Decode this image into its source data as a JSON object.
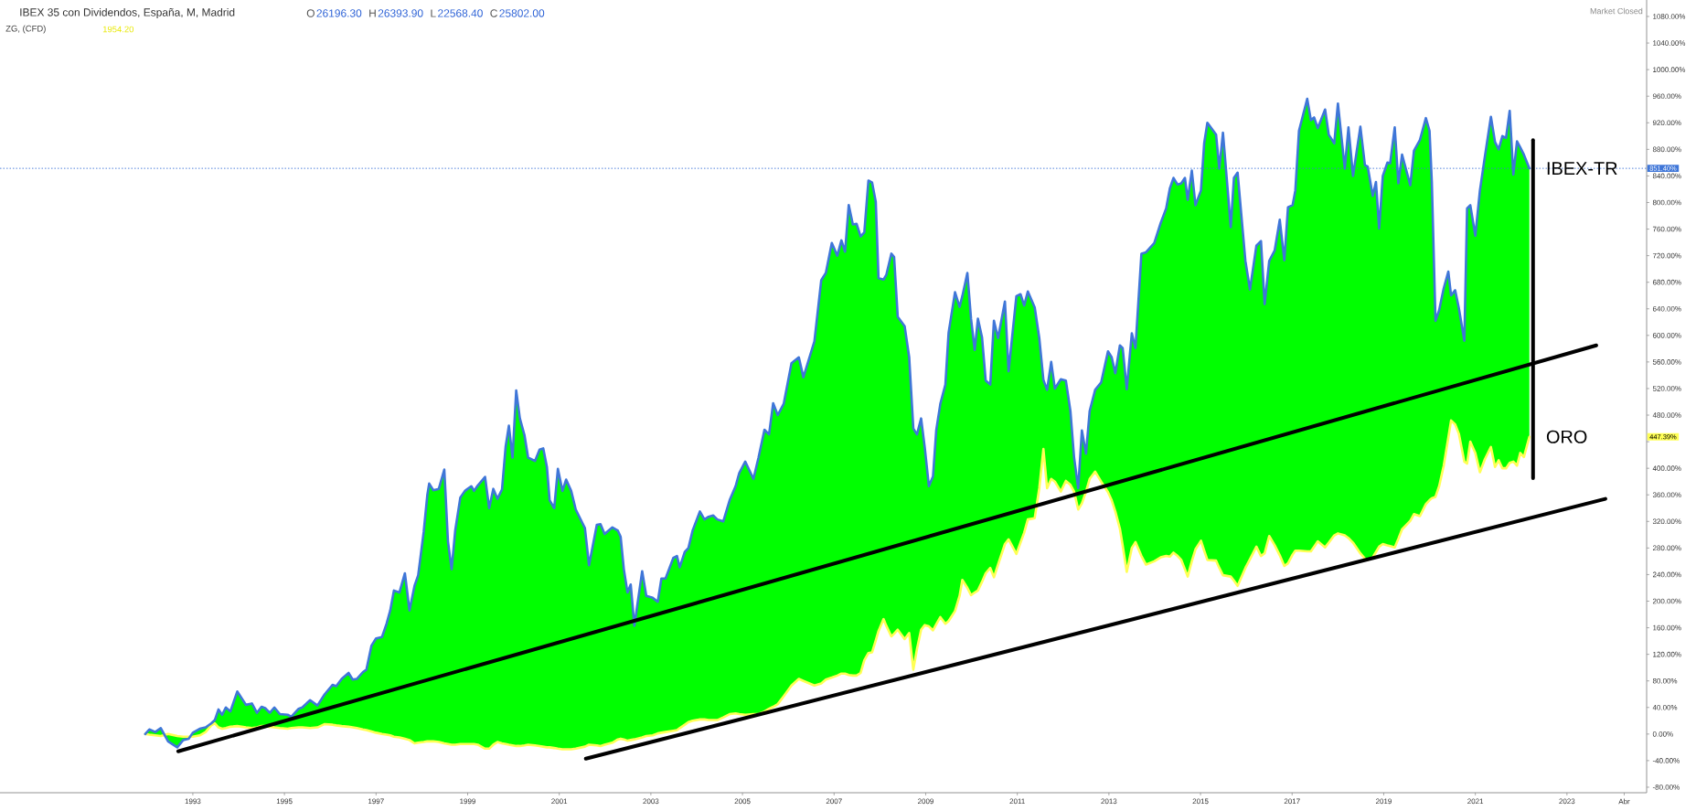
{
  "chart_data": {
    "type": "line",
    "title": "IBEX 35 con Dividendos, España, M, Madrid",
    "subtitle": "ZG, (CFD)",
    "annotations": [
      "O",
      "26196.30",
      "H",
      "26393.90",
      "L",
      "22568.40",
      "C",
      "25802.00",
      "1954.20",
      "Market Closed",
      "447.39%"
    ],
    "x": [
      1991.96,
      1992.05,
      1992.18,
      1992.3,
      1992.46,
      1992.66,
      1992.79,
      1992.91,
      1993.0,
      1993.15,
      1993.28,
      1993.4,
      1993.48,
      1993.56,
      1993.64,
      1993.72,
      1993.82,
      1993.97,
      1994.16,
      1994.29,
      1994.4,
      1994.5,
      1994.58,
      1994.68,
      1994.78,
      1994.9,
      1995.07,
      1995.15,
      1995.31,
      1995.39,
      1995.56,
      1995.72,
      1995.88,
      1996.05,
      1996.13,
      1996.25,
      1996.4,
      1996.49,
      1996.58,
      1996.71,
      1996.79,
      1996.9,
      1997.0,
      1997.13,
      1997.23,
      1997.31,
      1997.39,
      1997.51,
      1997.63,
      1997.73,
      1997.84,
      1997.92,
      1998.04,
      1998.12,
      1998.16,
      1998.25,
      1998.37,
      1998.49,
      1998.57,
      1998.65,
      1998.73,
      1998.84,
      1998.94,
      1999.08,
      1999.14,
      1999.22,
      1999.38,
      1999.47,
      1999.56,
      1999.65,
      1999.75,
      1999.83,
      1999.9,
      1999.98,
      2000.06,
      2000.14,
      2000.24,
      2000.32,
      2000.47,
      2000.57,
      2000.65,
      2000.73,
      2000.79,
      2000.89,
      2000.97,
      2001.07,
      2001.15,
      2001.26,
      2001.36,
      2001.56,
      2001.65,
      2001.82,
      2001.9,
      2001.99,
      2002.16,
      2002.28,
      2002.34,
      2002.41,
      2002.49,
      2002.56,
      2002.64,
      2002.81,
      2002.9,
      2003.04,
      2003.15,
      2003.23,
      2003.32,
      2003.49,
      2003.57,
      2003.63,
      2003.74,
      2003.82,
      2003.91,
      2004.07,
      2004.17,
      2004.26,
      2004.36,
      2004.45,
      2004.58,
      2004.72,
      2004.85,
      2004.93,
      2005.06,
      2005.24,
      2005.35,
      2005.48,
      2005.58,
      2005.67,
      2005.77,
      2005.9,
      2006.07,
      2006.23,
      2006.33,
      2006.57,
      2006.72,
      2006.82,
      2006.95,
      2007.07,
      2007.16,
      2007.24,
      2007.32,
      2007.41,
      2007.49,
      2007.58,
      2007.66,
      2007.75,
      2007.83,
      2007.91,
      2007.97,
      2008.08,
      2008.14,
      2008.25,
      2008.31,
      2008.39,
      2008.54,
      2008.64,
      2008.73,
      2008.81,
      2008.9,
      2008.98,
      2009.07,
      2009.16,
      2009.23,
      2009.32,
      2009.43,
      2009.5,
      2009.64,
      2009.74,
      2009.8,
      2009.91,
      2009.99,
      2010.07,
      2010.14,
      2010.23,
      2010.31,
      2010.41,
      2010.49,
      2010.58,
      2010.73,
      2010.81,
      2010.98,
      2011.07,
      2011.15,
      2011.23,
      2011.38,
      2011.48,
      2011.57,
      2011.65,
      2011.74,
      2011.82,
      2011.95,
      2012.06,
      2012.16,
      2012.24,
      2012.33,
      2012.41,
      2012.5,
      2012.58,
      2012.7,
      2012.83,
      2012.98,
      2013.06,
      2013.14,
      2013.24,
      2013.3,
      2013.39,
      2013.5,
      2013.58,
      2013.71,
      2013.81,
      2013.99,
      2014.13,
      2014.25,
      2014.33,
      2014.41,
      2014.5,
      2014.58,
      2014.66,
      2014.72,
      2014.81,
      2014.89,
      2015.01,
      2015.08,
      2015.15,
      2015.34,
      2015.41,
      2015.49,
      2015.66,
      2015.73,
      2015.81,
      2015.98,
      2016.08,
      2016.22,
      2016.32,
      2016.4,
      2016.5,
      2016.62,
      2016.73,
      2016.83,
      2016.91,
      2017.01,
      2017.07,
      2017.15,
      2017.33,
      2017.41,
      2017.48,
      2017.56,
      2017.72,
      2017.8,
      2017.92,
      2018.0,
      2018.15,
      2018.23,
      2018.33,
      2018.49,
      2018.59,
      2018.65,
      2018.76,
      2018.83,
      2018.9,
      2018.98,
      2019.08,
      2019.14,
      2019.24,
      2019.32,
      2019.4,
      2019.58,
      2019.66,
      2019.79,
      2019.92,
      2020.0,
      2020.05,
      2020.13,
      2020.21,
      2020.31,
      2020.41,
      2020.47,
      2020.56,
      2020.64,
      2020.76,
      2020.82,
      2020.89,
      2021.0,
      2021.1,
      2021.21,
      2021.34,
      2021.43,
      2021.51,
      2021.59,
      2021.67,
      2021.75,
      2021.83,
      2021.91,
      2021.98,
      2022.06,
      2022.18
    ],
    "series": [
      {
        "name": "ORO",
        "color": "#ffff55",
        "values": [
          0,
          -1,
          -2,
          -3,
          0,
          -3,
          -4,
          -4,
          -4,
          -2,
          3,
          13,
          16,
          10,
          8,
          9,
          11,
          12,
          10,
          9,
          10,
          12,
          12,
          11,
          10,
          9,
          8,
          9,
          10,
          10,
          9,
          10,
          15,
          14,
          13,
          12,
          11,
          10,
          9,
          7,
          6,
          4,
          2,
          0,
          -1,
          -2,
          -4,
          -5,
          -7,
          -9,
          -14,
          -13,
          -12,
          -11,
          -11,
          -11,
          -12,
          -14,
          -15,
          -16,
          -16,
          -15,
          -15,
          -15,
          -15,
          -16,
          -22,
          -22,
          -16,
          -12,
          -14,
          -15,
          -16,
          -17,
          -18,
          -18,
          -17,
          -16,
          -17,
          -18,
          -19,
          -20,
          -20,
          -21,
          -22,
          -23,
          -23,
          -23,
          -22,
          -19,
          -16,
          -17,
          -18,
          -16,
          -13,
          -8,
          -7,
          -8,
          -10,
          -9,
          -8,
          -5,
          -3,
          -2,
          1,
          2,
          3,
          5,
          6,
          9,
          14,
          18,
          20,
          22,
          22,
          21,
          21,
          21,
          25,
          30,
          31,
          30,
          29,
          30,
          30,
          34,
          38,
          41,
          45,
          57,
          73,
          83,
          80,
          73,
          76,
          82,
          85,
          88,
          91,
          91,
          89,
          88,
          88,
          92,
          111,
          122,
          123,
          141,
          155,
          173,
          163,
          147,
          151,
          157,
          143,
          152,
          97,
          128,
          157,
          164,
          162,
          156,
          165,
          176,
          166,
          170,
          185,
          208,
          232,
          220,
          209,
          213,
          216,
          229,
          242,
          250,
          236,
          255,
          286,
          293,
          271,
          288,
          303,
          323,
          325,
          370,
          429,
          370,
          384,
          380,
          365,
          381,
          375,
          365,
          338,
          347,
          365,
          384,
          395,
          380,
          364,
          352,
          335,
          309,
          284,
          244,
          280,
          289,
          268,
          255,
          260,
          266,
          268,
          267,
          273,
          268,
          262,
          248,
          237,
          260,
          278,
          291,
          276,
          262,
          261,
          250,
          239,
          237,
          231,
          223,
          250,
          263,
          282,
          268,
          272,
          298,
          284,
          269,
          253,
          257,
          270,
          276,
          276,
          275,
          275,
          282,
          290,
          281,
          288,
          299,
          302,
          299,
          295,
          288,
          272,
          264,
          262,
          266,
          274,
          282,
          286,
          284,
          283,
          281,
          294,
          308,
          321,
          331,
          328,
          346,
          352,
          355,
          357,
          373,
          404,
          446,
          472,
          466,
          452,
          410,
          407,
          440,
          423,
          394,
          414,
          432,
          402,
          412,
          400,
          400,
          408,
          410,
          404,
          423,
          417,
          447.39
        ]
      },
      {
        "name": "IBEX-TR",
        "color": "#3f76d8",
        "values": [
          0,
          7,
          3,
          9,
          -11,
          -20,
          -9,
          -7,
          2,
          8,
          10,
          16,
          21,
          37,
          29,
          40,
          34,
          64,
          44,
          46,
          32,
          41,
          39,
          32,
          40,
          30,
          29,
          26,
          38,
          40,
          51,
          43,
          60,
          74,
          72,
          83,
          92,
          82,
          83,
          93,
          97,
          133,
          144,
          146,
          166,
          186,
          216,
          213,
          242,
          186,
          223,
          239,
          304,
          360,
          377,
          367,
          369,
          398,
          290,
          248,
          307,
          356,
          366,
          373,
          366,
          374,
          387,
          340,
          369,
          354,
          368,
          433,
          464,
          416,
          517,
          475,
          450,
          416,
          411,
          428,
          430,
          402,
          352,
          340,
          399,
          366,
          383,
          366,
          338,
          310,
          254,
          315,
          316,
          301,
          311,
          306,
          297,
          248,
          213,
          225,
          163,
          245,
          208,
          205,
          199,
          234,
          234,
          265,
          268,
          251,
          274,
          280,
          306,
          335,
          323,
          327,
          329,
          323,
          320,
          352,
          373,
          393,
          410,
          384,
          416,
          458,
          451,
          498,
          480,
          497,
          558,
          567,
          537,
          591,
          683,
          694,
          739,
          720,
          743,
          726,
          796,
          767,
          768,
          749,
          755,
          833,
          830,
          801,
          686,
          684,
          691,
          723,
          718,
          628,
          614,
          567,
          460,
          451,
          475,
          431,
          373,
          388,
          457,
          497,
          526,
          604,
          665,
          643,
          659,
          694,
          625,
          578,
          625,
          597,
          532,
          526,
          622,
          596,
          651,
          546,
          659,
          662,
          645,
          666,
          642,
          596,
          533,
          518,
          560,
          520,
          534,
          532,
          486,
          416,
          370,
          457,
          422,
          486,
          518,
          529,
          576,
          567,
          543,
          585,
          581,
          519,
          603,
          581,
          723,
          725,
          739,
          769,
          791,
          821,
          837,
          827,
          829,
          837,
          804,
          848,
          796,
          818,
          889,
          920,
          902,
          851,
          905,
          763,
          837,
          845,
          712,
          669,
          735,
          742,
          647,
          712,
          728,
          774,
          713,
          793,
          796,
          818,
          908,
          956,
          924,
          928,
          912,
          940,
          902,
          889,
          949,
          851,
          913,
          840,
          914,
          856,
          854,
          810,
          831,
          761,
          840,
          860,
          859,
          913,
          829,
          872,
          826,
          878,
          894,
          927,
          908,
          831,
          622,
          638,
          671,
          696,
          660,
          668,
          641,
          592,
          791,
          796,
          750,
          818,
          870,
          929,
          891,
          880,
          900,
          897,
          938,
          842,
          892,
          883,
          872,
          851.4
        ],
        "lower": [
          0,
          -1,
          -2,
          -3,
          0,
          -3,
          -4,
          -4,
          -4,
          -2,
          3,
          13,
          16,
          10,
          8,
          9,
          11,
          12,
          10,
          9,
          10,
          12,
          12,
          11,
          10,
          9,
          8,
          9,
          10,
          10,
          9,
          10,
          15,
          14,
          13,
          12,
          11,
          10,
          9,
          7,
          6,
          4,
          2,
          0,
          -1,
          -2,
          -4,
          -5,
          -7,
          -9,
          -14,
          -13,
          -12,
          -11,
          -11,
          -11,
          -12,
          -14,
          -15,
          -16,
          -16,
          -15,
          -15,
          -15,
          -15,
          -16,
          -22,
          -22,
          -16,
          -12,
          -14,
          -15,
          -16,
          -17,
          -18,
          -18,
          -17,
          -16,
          -17,
          -18,
          -19,
          -20,
          -20,
          -21,
          -22,
          -23,
          -23,
          -23,
          -22,
          -19,
          -16,
          -17,
          -18,
          -16,
          -13,
          -8,
          -7,
          -8,
          -10,
          -9,
          -8,
          -5,
          -3,
          -2,
          1,
          2,
          3,
          5,
          6,
          9,
          14,
          18,
          20,
          22,
          22,
          21,
          21,
          21,
          25,
          30,
          31,
          30,
          29,
          30,
          30,
          34,
          38,
          41,
          45,
          57,
          73,
          83,
          80,
          73,
          76,
          82,
          85,
          88,
          91,
          91,
          89,
          88,
          88,
          92,
          111,
          122,
          123,
          141,
          155,
          173,
          163,
          147,
          151,
          157,
          143,
          152,
          97,
          128,
          157,
          164,
          162,
          156,
          165,
          176,
          166,
          170,
          185,
          208,
          232,
          220,
          209,
          213,
          216,
          229,
          242,
          250,
          236,
          255,
          286,
          293,
          271,
          288,
          303,
          323,
          325,
          370,
          429,
          370,
          384,
          380,
          365,
          381,
          375,
          365,
          338,
          347,
          365,
          384,
          395,
          380,
          364,
          352,
          335,
          309,
          284,
          244,
          280,
          289,
          268,
          255,
          260,
          266,
          268,
          267,
          273,
          268,
          262,
          248,
          237,
          260,
          278,
          291,
          276,
          262,
          261,
          250,
          239,
          237,
          231,
          223,
          250,
          263,
          282,
          268,
          272,
          298,
          284,
          269,
          253,
          257,
          270,
          276,
          276,
          275,
          275,
          282,
          290,
          281,
          288,
          299,
          302,
          299,
          295,
          288,
          272,
          264,
          262,
          266,
          274,
          282,
          286,
          284,
          283,
          281,
          294,
          308,
          321,
          331,
          328,
          346,
          352,
          355,
          357,
          373,
          404,
          446,
          472,
          466,
          452,
          410,
          407,
          440,
          423,
          394,
          414,
          432,
          402,
          412,
          400,
          400,
          408,
          410,
          404,
          423,
          417,
          447.39
        ],
        "upper": [
          0,
          7,
          3,
          9,
          -11,
          -20,
          -9,
          -7,
          2,
          8,
          10,
          16,
          21,
          37,
          29,
          40,
          34,
          64,
          44,
          46,
          32,
          41,
          39,
          32,
          40,
          30,
          29,
          26,
          38,
          40,
          51,
          43,
          60,
          74,
          72,
          83,
          92,
          82,
          83,
          93,
          97,
          133,
          144,
          146,
          166,
          186,
          216,
          213,
          242,
          186,
          223,
          239,
          304,
          360,
          377,
          367,
          369,
          398,
          290,
          248,
          307,
          356,
          366,
          373,
          366,
          374,
          387,
          340,
          369,
          354,
          368,
          433,
          464,
          416,
          517,
          475,
          450,
          416,
          411,
          428,
          430,
          402,
          352,
          340,
          399,
          366,
          383,
          366,
          338,
          310,
          254,
          315,
          316,
          301,
          311,
          306,
          297,
          248,
          213,
          225,
          163,
          245,
          208,
          205,
          199,
          234,
          234,
          265,
          268,
          251,
          274,
          280,
          306,
          335,
          323,
          327,
          329,
          323,
          320,
          352,
          373,
          393,
          410,
          384,
          416,
          458,
          451,
          498,
          480,
          497,
          558,
          567,
          537,
          591,
          683,
          694,
          739,
          720,
          743,
          726,
          796,
          767,
          768,
          749,
          755,
          833,
          830,
          801,
          686,
          684,
          691,
          723,
          718,
          628,
          614,
          567,
          460,
          451,
          475,
          431,
          373,
          388,
          457,
          497,
          526,
          604,
          665,
          643,
          659,
          694,
          625,
          578,
          625,
          597,
          532,
          526,
          622,
          596,
          651,
          546,
          659,
          662,
          645,
          666,
          642,
          596,
          533,
          518,
          560,
          520,
          534,
          532,
          486,
          416,
          370,
          457,
          422,
          486,
          518,
          529,
          576,
          567,
          543,
          585,
          581,
          519,
          603,
          581,
          723,
          725,
          739,
          769,
          791,
          821,
          837,
          827,
          829,
          837,
          804,
          848,
          796,
          818,
          889,
          920,
          902,
          851,
          905,
          763,
          837,
          845,
          712,
          669,
          735,
          742,
          647,
          712,
          728,
          774,
          713,
          793,
          796,
          818,
          908,
          956,
          924,
          928,
          912,
          940,
          902,
          889,
          949,
          851,
          913,
          840,
          914,
          856,
          854,
          810,
          831,
          761,
          840,
          860,
          859,
          913,
          829,
          872,
          826,
          878,
          894,
          927,
          908,
          831,
          622,
          638,
          671,
          696,
          660,
          668,
          641,
          592,
          791,
          796,
          750,
          818,
          870,
          929,
          891,
          880,
          900,
          897,
          938,
          842,
          892,
          883,
          872,
          851.4
        ]
      },
      {
        "color": "#000000",
        "x": [
          1992.68,
          2023.64
        ],
        "values": [
          -26,
          585
        ]
      },
      {
        "color": "#000000",
        "x": [
          2001.58,
          2023.84
        ],
        "values": [
          -37,
          354
        ]
      },
      {
        "color": "#000000",
        "x": [
          2022.26,
          2022.26
        ],
        "values": [
          894,
          385
        ]
      }
    ],
    "xlim": [
      1988.79,
      2024.74
    ],
    "ylim": [
      -88.3,
      1104.8
    ],
    "xticks": [
      1993,
      1995,
      1997,
      1999,
      2001,
      2003,
      2005,
      2007,
      2009,
      2011,
      2013,
      2015,
      2017,
      2019,
      2021,
      2023,
      {
        "value": 2024.25,
        "label": "Abr"
      }
    ],
    "yticks": [
      {
        "value": -80,
        "label": "-80.00%"
      },
      {
        "value": -40,
        "label": "-40.00%"
      },
      {
        "value": 0,
        "label": "0.00%"
      },
      {
        "value": 40,
        "label": "40.00%"
      },
      {
        "value": 80,
        "label": "80.00%"
      },
      {
        "value": 120,
        "label": "120.00%"
      },
      {
        "value": 160,
        "label": "160.00%"
      },
      {
        "value": 200,
        "label": "200.00%"
      },
      {
        "value": 240,
        "label": "240.00%"
      },
      {
        "value": 280,
        "label": "280.00%"
      },
      {
        "value": 320,
        "label": "320.00%"
      },
      {
        "value": 360,
        "label": "360.00%"
      },
      {
        "value": 400,
        "label": "400.00%"
      },
      {
        "value": 440,
        "label": null
      },
      {
        "value": 480,
        "label": "480.00%"
      },
      {
        "value": 520,
        "label": "520.00%"
      },
      {
        "value": 560,
        "label": "560.00%"
      },
      {
        "value": 600,
        "label": "600.00%"
      },
      {
        "value": 640,
        "label": "640.00%"
      },
      {
        "value": 680,
        "label": "680.00%"
      },
      {
        "value": 720,
        "label": "720.00%"
      },
      {
        "value": 760,
        "label": "760.00%"
      },
      {
        "value": 800,
        "label": "800.00%"
      },
      {
        "value": 840,
        "label": "840.00%"
      },
      {
        "value": 880,
        "label": "880.00%"
      },
      {
        "value": 920,
        "label": "920.00%"
      },
      {
        "value": 960,
        "label": "960.00%"
      },
      {
        "value": 1000,
        "label": "1000.00%"
      },
      {
        "value": 1040,
        "label": "1040.00%"
      },
      {
        "value": 1080,
        "label": "1080.00%"
      }
    ],
    "ref_lines": [
      {
        "axis": "y",
        "value": 851.4,
        "label": "851.40%",
        "color": "#3f76d8",
        "line_style": "dotted"
      }
    ]
  }
}
